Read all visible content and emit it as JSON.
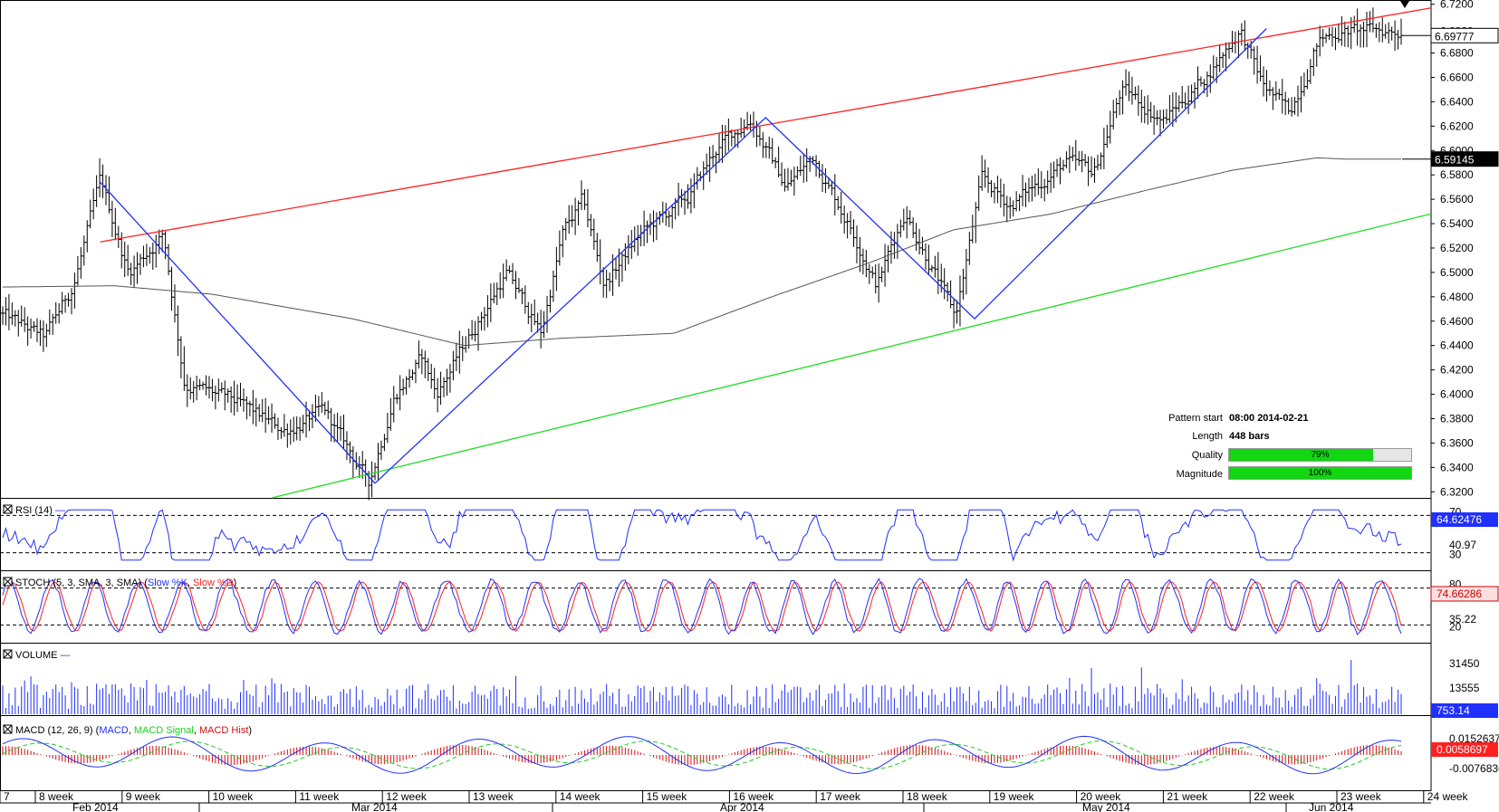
{
  "chart_data": {
    "type": "candlestick",
    "price_axis": {
      "ticks": [
        "6.7200",
        "6.6980",
        "6.6800",
        "6.6600",
        "6.6400",
        "6.6200",
        "6.6000",
        "6.5800",
        "6.5600",
        "6.5400",
        "6.5200",
        "6.5000",
        "6.4800",
        "6.4600",
        "6.4400",
        "6.4200",
        "6.4000",
        "6.3800",
        "6.3600",
        "6.3400",
        "6.3200"
      ],
      "ylim": [
        6.315,
        6.722
      ],
      "current_price": "6.69777",
      "sma_value": "6.59145"
    },
    "pattern": {
      "start_label": "Pattern start",
      "start_value": "08:00 2014-02-21",
      "length_label": "Length",
      "length_value": "448 bars",
      "quality_label": "Quality",
      "quality_value": "79%",
      "quality": 0.79,
      "magnitude_label": "Magnitude",
      "magnitude_value": "100%",
      "magnitude": 1.0
    },
    "channel": {
      "upper": {
        "color": "#ff2020",
        "points": [
          [
            0.07,
            6.525
          ],
          [
            1.0,
            6.717
          ]
        ]
      },
      "lower": {
        "color": "#22dd22",
        "points": [
          [
            0.19,
            6.315
          ],
          [
            1.0,
            6.548
          ]
        ]
      }
    },
    "zigzag": {
      "color": "#2030ff",
      "points": [
        [
          0.07,
          6.574
        ],
        [
          0.262,
          6.327
        ],
        [
          0.535,
          6.627
        ],
        [
          0.681,
          6.462
        ],
        [
          0.885,
          6.7
        ]
      ]
    },
    "price_anchors": [
      [
        0.0,
        6.465
      ],
      [
        0.03,
        6.445
      ],
      [
        0.05,
        6.488
      ],
      [
        0.07,
        6.574
      ],
      [
        0.09,
        6.5
      ],
      [
        0.115,
        6.532
      ],
      [
        0.13,
        6.41
      ],
      [
        0.17,
        6.39
      ],
      [
        0.2,
        6.37
      ],
      [
        0.23,
        6.385
      ],
      [
        0.262,
        6.327
      ],
      [
        0.28,
        6.4
      ],
      [
        0.3,
        6.43
      ],
      [
        0.31,
        6.4
      ],
      [
        0.33,
        6.44
      ],
      [
        0.36,
        6.5
      ],
      [
        0.385,
        6.45
      ],
      [
        0.4,
        6.53
      ],
      [
        0.415,
        6.558
      ],
      [
        0.43,
        6.49
      ],
      [
        0.455,
        6.53
      ],
      [
        0.49,
        6.56
      ],
      [
        0.51,
        6.6
      ],
      [
        0.535,
        6.627
      ],
      [
        0.56,
        6.57
      ],
      [
        0.58,
        6.595
      ],
      [
        0.61,
        6.53
      ],
      [
        0.625,
        6.49
      ],
      [
        0.645,
        6.55
      ],
      [
        0.665,
        6.505
      ],
      [
        0.681,
        6.462
      ],
      [
        0.7,
        6.575
      ],
      [
        0.72,
        6.555
      ],
      [
        0.76,
        6.59
      ],
      [
        0.78,
        6.58
      ],
      [
        0.8,
        6.65
      ],
      [
        0.83,
        6.625
      ],
      [
        0.86,
        6.66
      ],
      [
        0.885,
        6.7
      ],
      [
        0.9,
        6.655
      ],
      [
        0.92,
        6.63
      ],
      [
        0.94,
        6.69
      ],
      [
        0.955,
        6.698
      ]
    ],
    "sma_anchors": [
      [
        0.0,
        6.488
      ],
      [
        0.08,
        6.489
      ],
      [
        0.15,
        6.482
      ],
      [
        0.25,
        6.462
      ],
      [
        0.33,
        6.44
      ],
      [
        0.4,
        6.446
      ],
      [
        0.48,
        6.45
      ],
      [
        0.55,
        6.48
      ],
      [
        0.62,
        6.508
      ],
      [
        0.68,
        6.535
      ],
      [
        0.75,
        6.548
      ],
      [
        0.82,
        6.568
      ],
      [
        0.88,
        6.584
      ],
      [
        0.94,
        6.594
      ],
      [
        0.96,
        6.593
      ]
    ],
    "rsi": {
      "label": "RSI (14)",
      "value": "64.62476",
      "level_hi": "70",
      "level_mid": "40.97",
      "level_lo": "30"
    },
    "stoch": {
      "label": "STOCH (5, 3, SMA, 3, SMA)",
      "series_k": "Slow %K",
      "series_d": "Slow %D",
      "value": "74.66286",
      "level_hi": "80",
      "level_mid": "35.22",
      "level_lo": "20"
    },
    "volume": {
      "label": "VOLUME",
      "value": "753.14",
      "tick_hi": "31450",
      "tick_mid": "13555"
    },
    "macd": {
      "label": "MACD (12, 26, 9)",
      "series_macd": "MACD",
      "series_signal": "MACD Signal",
      "series_hist": "MACD Hist",
      "tick_hi": "0.0152637",
      "value": "0.0058697",
      "tick_lo": "-0.0076836"
    },
    "x_axis": {
      "weeks": [
        "7",
        "8 week",
        "9 week",
        "10 week",
        "11 week",
        "12 week",
        "13 week",
        "14 week",
        "15 week",
        "16 week",
        "17 week",
        "18 week",
        "19 week",
        "20 week",
        "21 week",
        "22 week",
        "23 week",
        "24 week"
      ],
      "months": [
        "Feb 2014",
        "Mar 2014",
        "Apr 2014",
        "May 2014",
        "Jun 2014"
      ]
    }
  },
  "colors": {
    "up_channel": "#ff2020",
    "down_channel": "#22dd22",
    "zigzag": "#2030ff",
    "sma": "#555555",
    "rsi": "#2030ff",
    "stoch_k": "#2030ff",
    "stoch_d": "#ff2020",
    "volume": "#2030ff",
    "macd": "#2030ff",
    "macd_signal": "#22cc22",
    "macd_hist": "#cc1111",
    "quality_bar": "#11d611"
  }
}
